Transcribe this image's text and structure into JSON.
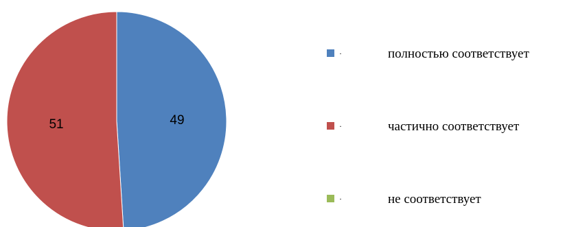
{
  "chart_data": {
    "type": "pie",
    "categories": [
      "полностью соответствует",
      "частично соответствует",
      "не соответствует"
    ],
    "values": [
      49,
      51,
      0
    ],
    "data_labels": [
      "49",
      "51",
      ""
    ],
    "colors": [
      "#4F81BD",
      "#C0504D",
      "#9BBB59"
    ],
    "legend": {
      "position": "right",
      "marker_text": "·",
      "entries": [
        "полностью соответствует",
        "частично соответствует",
        "не соответствует"
      ]
    }
  }
}
